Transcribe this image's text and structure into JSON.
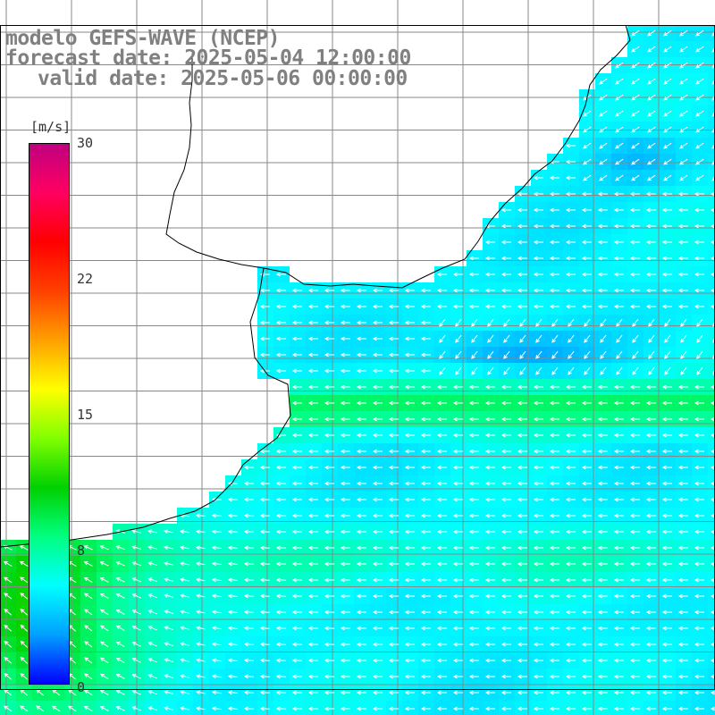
{
  "title": {
    "line1": "modelo GEFS-WAVE (NCEP)",
    "line2": "forecast date: 2025-05-04 12:00:00",
    "line3": "valid date: 2025-05-06 00:00:00"
  },
  "colorbar": {
    "unit": "[m/s]",
    "ticks": [
      "30",
      "22",
      "15",
      "8",
      "0"
    ],
    "tick_values": [
      30,
      22,
      15,
      8,
      0
    ],
    "min": 0,
    "max": 30,
    "colors": [
      "#0000ff",
      "#00a0ff",
      "#00ffff",
      "#00ff80",
      "#00d000",
      "#80ff00",
      "#ffff00",
      "#ffa000",
      "#ff4000",
      "#ff0000",
      "#ff0060",
      "#c00080"
    ]
  },
  "field": {
    "variable": "wind speed",
    "land_color": "#ffffff",
    "coastline_color": "#000000",
    "grid_color": "#888888",
    "arrow_color": "#ffffff"
  }
}
